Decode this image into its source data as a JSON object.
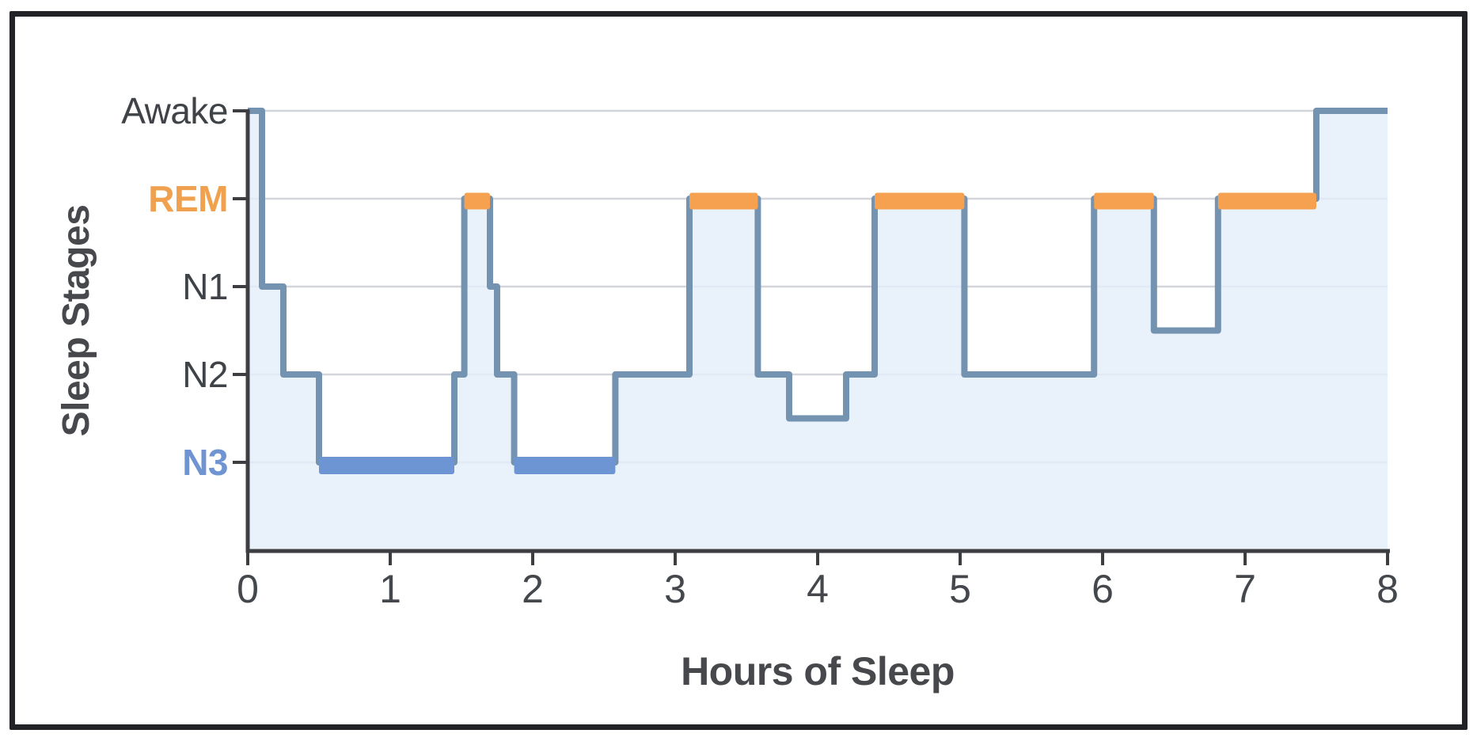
{
  "frame": {
    "border_color": "#212327",
    "background": "#ffffff"
  },
  "chart_data": {
    "type": "area-step",
    "title": "",
    "xlabel": "Hours of Sleep",
    "ylabel": "Sleep Stages",
    "x_units": "hours",
    "xlim": [
      0,
      8
    ],
    "x_ticks": [
      0,
      1,
      2,
      3,
      4,
      5,
      6,
      7,
      8
    ],
    "grid": true,
    "legend_position": "none",
    "stages": [
      {
        "label": "Awake",
        "value": 4,
        "label_color": "#3f4246",
        "bold": false
      },
      {
        "label": "REM",
        "value": 3,
        "label_color": "#f0a14f",
        "bold": true
      },
      {
        "label": "N1",
        "value": 2,
        "label_color": "#3f4246",
        "bold": false
      },
      {
        "label": "N2",
        "value": 1,
        "label_color": "#3f4246",
        "bold": false
      },
      {
        "label": "N3",
        "value": 0,
        "label_color": "#7094d2",
        "bold": true
      }
    ],
    "segments": [
      {
        "start": 0.0,
        "end": 0.1,
        "stage": "Awake",
        "value": 4
      },
      {
        "start": 0.1,
        "end": 0.25,
        "stage": "N1",
        "value": 2
      },
      {
        "start": 0.25,
        "end": 0.5,
        "stage": "N2",
        "value": 1
      },
      {
        "start": 0.5,
        "end": 1.45,
        "stage": "N3",
        "value": 0
      },
      {
        "start": 1.45,
        "end": 1.52,
        "stage": "N2",
        "value": 1
      },
      {
        "start": 1.52,
        "end": 1.7,
        "stage": "REM",
        "value": 3
      },
      {
        "start": 1.7,
        "end": 1.75,
        "stage": "N1",
        "value": 2
      },
      {
        "start": 1.75,
        "end": 1.87,
        "stage": "N2",
        "value": 1
      },
      {
        "start": 1.87,
        "end": 2.58,
        "stage": "N3",
        "value": 0
      },
      {
        "start": 2.58,
        "end": 3.1,
        "stage": "N2",
        "value": 1
      },
      {
        "start": 3.1,
        "end": 3.58,
        "stage": "REM",
        "value": 3
      },
      {
        "start": 3.58,
        "end": 3.8,
        "stage": "N2",
        "value": 1
      },
      {
        "start": 3.8,
        "end": 4.2,
        "stage": "N2/N3",
        "value": 0.5
      },
      {
        "start": 4.2,
        "end": 4.4,
        "stage": "N2",
        "value": 1
      },
      {
        "start": 4.4,
        "end": 5.03,
        "stage": "REM",
        "value": 3
      },
      {
        "start": 5.03,
        "end": 5.94,
        "stage": "N2",
        "value": 1
      },
      {
        "start": 5.94,
        "end": 6.36,
        "stage": "REM",
        "value": 3
      },
      {
        "start": 6.36,
        "end": 6.81,
        "stage": "N1/N2",
        "value": 1.5
      },
      {
        "start": 6.81,
        "end": 7.5,
        "stage": "REM",
        "value": 3
      },
      {
        "start": 7.5,
        "end": 8.0,
        "stage": "Awake",
        "value": 4
      }
    ],
    "colors": {
      "line": "#7493b1",
      "fill": "rgba(228,237,250,0.8)",
      "rem_highlight": "#f5a14f",
      "n3_highlight": "#6d95d3",
      "grid": "#d2d6db",
      "axis": "#3c3e42",
      "tick_label": "#44474c",
      "axis_title": "#46484c"
    }
  }
}
